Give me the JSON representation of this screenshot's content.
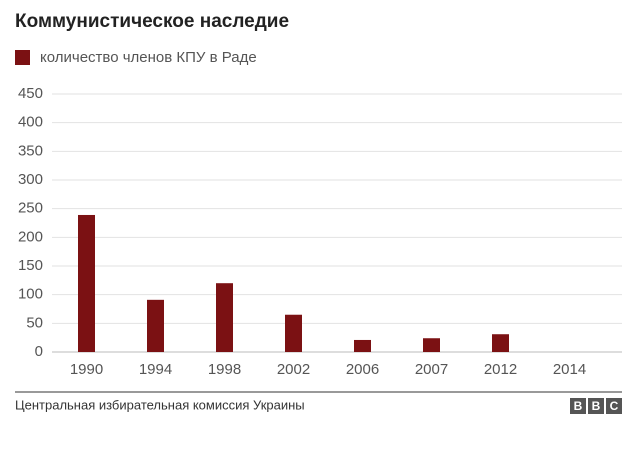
{
  "chart_data": {
    "type": "bar",
    "title": "Коммунистическое наследие",
    "categories": [
      "1990",
      "1994",
      "1998",
      "2002",
      "2006",
      "2007",
      "2012",
      "2014"
    ],
    "series": [
      {
        "name": "количество членов КПУ в Раде",
        "color": "#7b1113",
        "values": [
          239,
          91,
          120,
          65,
          21,
          24,
          31,
          0
        ]
      }
    ],
    "ylim": [
      0,
      450
    ],
    "yticks": [
      0,
      50,
      100,
      150,
      200,
      250,
      300,
      350,
      400,
      450
    ],
    "grid": true,
    "source": "Центральная избирательная комиссия Украины",
    "logo": [
      "B",
      "B",
      "C"
    ]
  }
}
